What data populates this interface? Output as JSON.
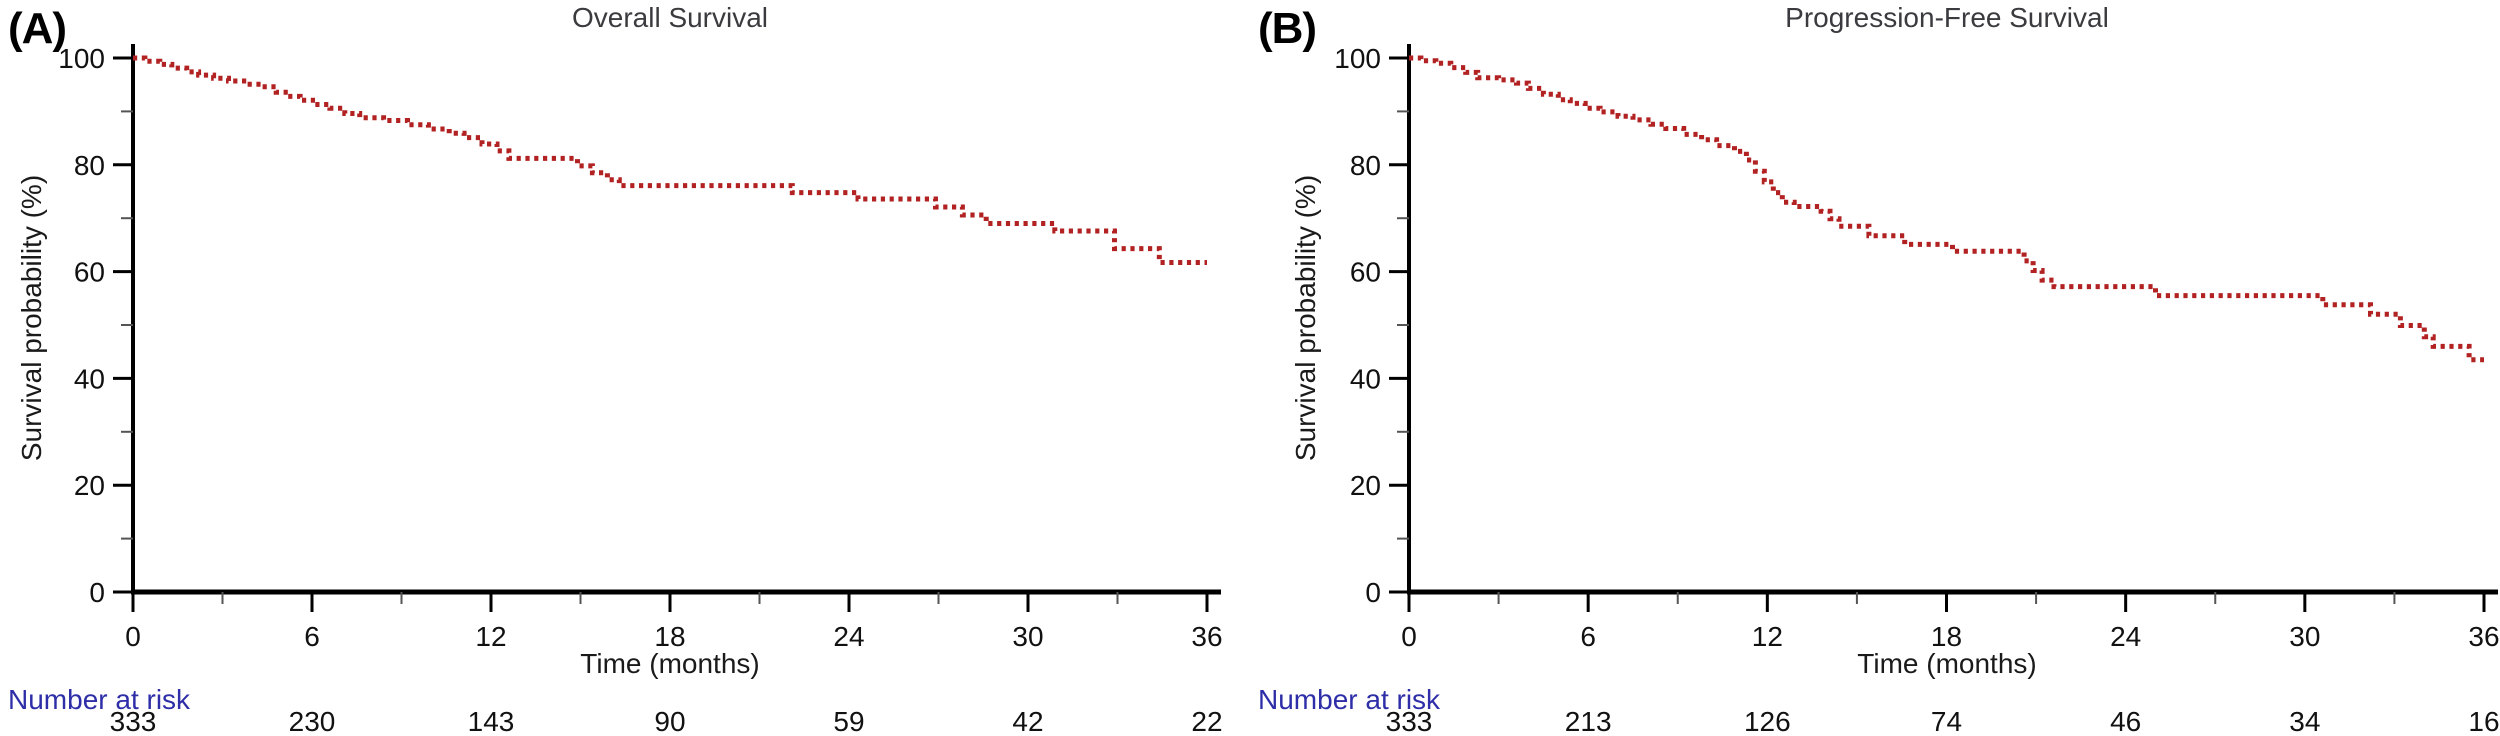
{
  "figure": {
    "background": "#ffffff"
  },
  "chart_data": [
    {
      "type": "line",
      "style": "kaplan-meier-dotted-step",
      "panel_label": "(A)",
      "title": "Overall Survival",
      "xlabel": "Time (months)",
      "ylabel": "Survival probability (%)",
      "xlim": [
        0,
        36
      ],
      "ylim": [
        0,
        100
      ],
      "x_major_ticks": [
        0,
        6,
        12,
        18,
        24,
        30,
        36
      ],
      "x_minor_ticks": [
        3,
        9,
        15,
        21,
        27,
        33
      ],
      "y_major_ticks": [
        0,
        20,
        40,
        60,
        80,
        100
      ],
      "y_minor_ticks": [
        10,
        30,
        50,
        70,
        90
      ],
      "grid": false,
      "legend": "none",
      "line_color": "#b22222",
      "axis_color": "#000000",
      "series": [
        {
          "name": "Overall Survival",
          "step_points": [
            [
              0,
              100
            ],
            [
              0.4,
              99.4
            ],
            [
              0.9,
              98.8
            ],
            [
              1.3,
              98.1
            ],
            [
              1.8,
              97.4
            ],
            [
              2.2,
              96.8
            ],
            [
              2.7,
              96.2
            ],
            [
              3.2,
              95.7
            ],
            [
              3.8,
              95.1
            ],
            [
              4.3,
              94.6
            ],
            [
              4.8,
              93.6
            ],
            [
              5.2,
              92.8
            ],
            [
              5.6,
              92.1
            ],
            [
              6.1,
              91.3
            ],
            [
              6.6,
              90.6
            ],
            [
              7.1,
              89.6
            ],
            [
              7.6,
              88.8
            ],
            [
              8.4,
              88.3
            ],
            [
              9.2,
              87.5
            ],
            [
              9.9,
              86.7
            ],
            [
              10.6,
              85.9
            ],
            [
              11.1,
              85.1
            ],
            [
              11.7,
              83.9
            ],
            [
              12.2,
              82.6
            ],
            [
              12.6,
              81.2
            ],
            [
              14.9,
              79.8
            ],
            [
              15.4,
              78.5
            ],
            [
              15.9,
              77.2
            ],
            [
              16.3,
              76.1
            ],
            [
              22.1,
              74.8
            ],
            [
              24.3,
              73.6
            ],
            [
              26.9,
              72.1
            ],
            [
              27.8,
              70.6
            ],
            [
              28.6,
              69.0
            ],
            [
              30.9,
              67.6
            ],
            [
              32.9,
              64.3
            ],
            [
              34.4,
              61.7
            ],
            [
              36,
              61.7
            ]
          ]
        }
      ],
      "number_at_risk": {
        "label": "Number at risk",
        "label_color": "#2e2ea8",
        "times": [
          0,
          6,
          12,
          18,
          24,
          30,
          36
        ],
        "values": [
          333,
          230,
          143,
          90,
          59,
          42,
          22
        ]
      }
    },
    {
      "type": "line",
      "style": "kaplan-meier-dotted-step",
      "panel_label": "(B)",
      "title": "Progression-Free Survival",
      "xlabel": "Time (months)",
      "ylabel": "Survival probability (%)",
      "xlim": [
        0,
        36
      ],
      "ylim": [
        0,
        100
      ],
      "x_major_ticks": [
        0,
        6,
        12,
        18,
        24,
        30,
        36
      ],
      "x_minor_ticks": [
        3,
        9,
        15,
        21,
        27,
        33
      ],
      "y_major_ticks": [
        0,
        20,
        40,
        60,
        80,
        100
      ],
      "y_minor_ticks": [
        10,
        30,
        50,
        70,
        90
      ],
      "grid": false,
      "legend": "none",
      "line_color": "#b22222",
      "axis_color": "#000000",
      "series": [
        {
          "name": "Progression-Free Survival",
          "step_points": [
            [
              0,
              100
            ],
            [
              0.4,
              99.5
            ],
            [
              0.9,
              99.0
            ],
            [
              1.4,
              98.2
            ],
            [
              1.9,
              97.3
            ],
            [
              2.3,
              96.3
            ],
            [
              3.0,
              95.9
            ],
            [
              3.6,
              95.3
            ],
            [
              4.0,
              94.3
            ],
            [
              4.5,
              93.2
            ],
            [
              5.0,
              92.2
            ],
            [
              5.4,
              91.5
            ],
            [
              5.9,
              90.6
            ],
            [
              6.4,
              89.9
            ],
            [
              7.0,
              89.1
            ],
            [
              7.5,
              88.4
            ],
            [
              8.1,
              87.6
            ],
            [
              8.6,
              86.8
            ],
            [
              9.2,
              85.7
            ],
            [
              9.8,
              84.7
            ],
            [
              10.3,
              83.6
            ],
            [
              10.9,
              82.5
            ],
            [
              11.3,
              80.9
            ],
            [
              11.6,
              78.8
            ],
            [
              11.9,
              76.8
            ],
            [
              12.2,
              74.8
            ],
            [
              12.5,
              73.0
            ],
            [
              12.9,
              72.2
            ],
            [
              13.8,
              71.3
            ],
            [
              14.1,
              69.9
            ],
            [
              14.4,
              68.5
            ],
            [
              15.4,
              66.7
            ],
            [
              16.6,
              65.1
            ],
            [
              18.2,
              63.8
            ],
            [
              20.6,
              62.0
            ],
            [
              20.9,
              60.2
            ],
            [
              21.2,
              58.4
            ],
            [
              21.6,
              57.2
            ],
            [
              25.0,
              55.5
            ],
            [
              30.6,
              53.8
            ],
            [
              32.2,
              52.0
            ],
            [
              33.2,
              49.9
            ],
            [
              34.0,
              47.8
            ],
            [
              34.3,
              46.0
            ],
            [
              35.5,
              43.5
            ],
            [
              36,
              43.5
            ]
          ]
        }
      ],
      "number_at_risk": {
        "label": "Number at risk",
        "label_color": "#2e2ea8",
        "times": [
          0,
          6,
          12,
          18,
          24,
          30,
          36
        ],
        "values": [
          333,
          213,
          126,
          74,
          46,
          34,
          16
        ]
      }
    }
  ]
}
